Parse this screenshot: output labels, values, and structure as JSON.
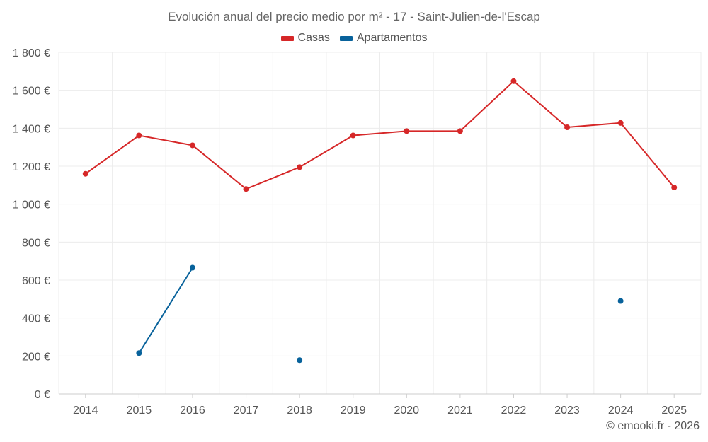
{
  "chart_data": {
    "type": "line",
    "title": "Evolución anual del precio medio por m² - 17 - Saint-Julien-de-l'Escap",
    "categories": [
      "2014",
      "2015",
      "2016",
      "2017",
      "2018",
      "2019",
      "2020",
      "2021",
      "2022",
      "2023",
      "2024",
      "2025"
    ],
    "ylim": [
      0,
      1800
    ],
    "yticks": [
      0,
      200,
      400,
      600,
      800,
      1000,
      1200,
      1400,
      1600,
      1800
    ],
    "ytick_labels": [
      "0 €",
      "200 €",
      "400 €",
      "600 €",
      "800 €",
      "1 000 €",
      "1 200 €",
      "1 400 €",
      "1 600 €",
      "1 800 €"
    ],
    "grid": true,
    "legend_position": "top-center",
    "series": [
      {
        "name": "Casas",
        "color": "#d62728",
        "values": [
          1160,
          1362,
          1310,
          1080,
          1195,
          1362,
          1385,
          1385,
          1648,
          1405,
          1428,
          1088
        ]
      },
      {
        "name": "Apartamentos",
        "color": "#08629b",
        "values": [
          null,
          215,
          665,
          null,
          178,
          null,
          null,
          null,
          null,
          null,
          490,
          null
        ]
      }
    ]
  },
  "credit": "© emooki.fr - 2026"
}
